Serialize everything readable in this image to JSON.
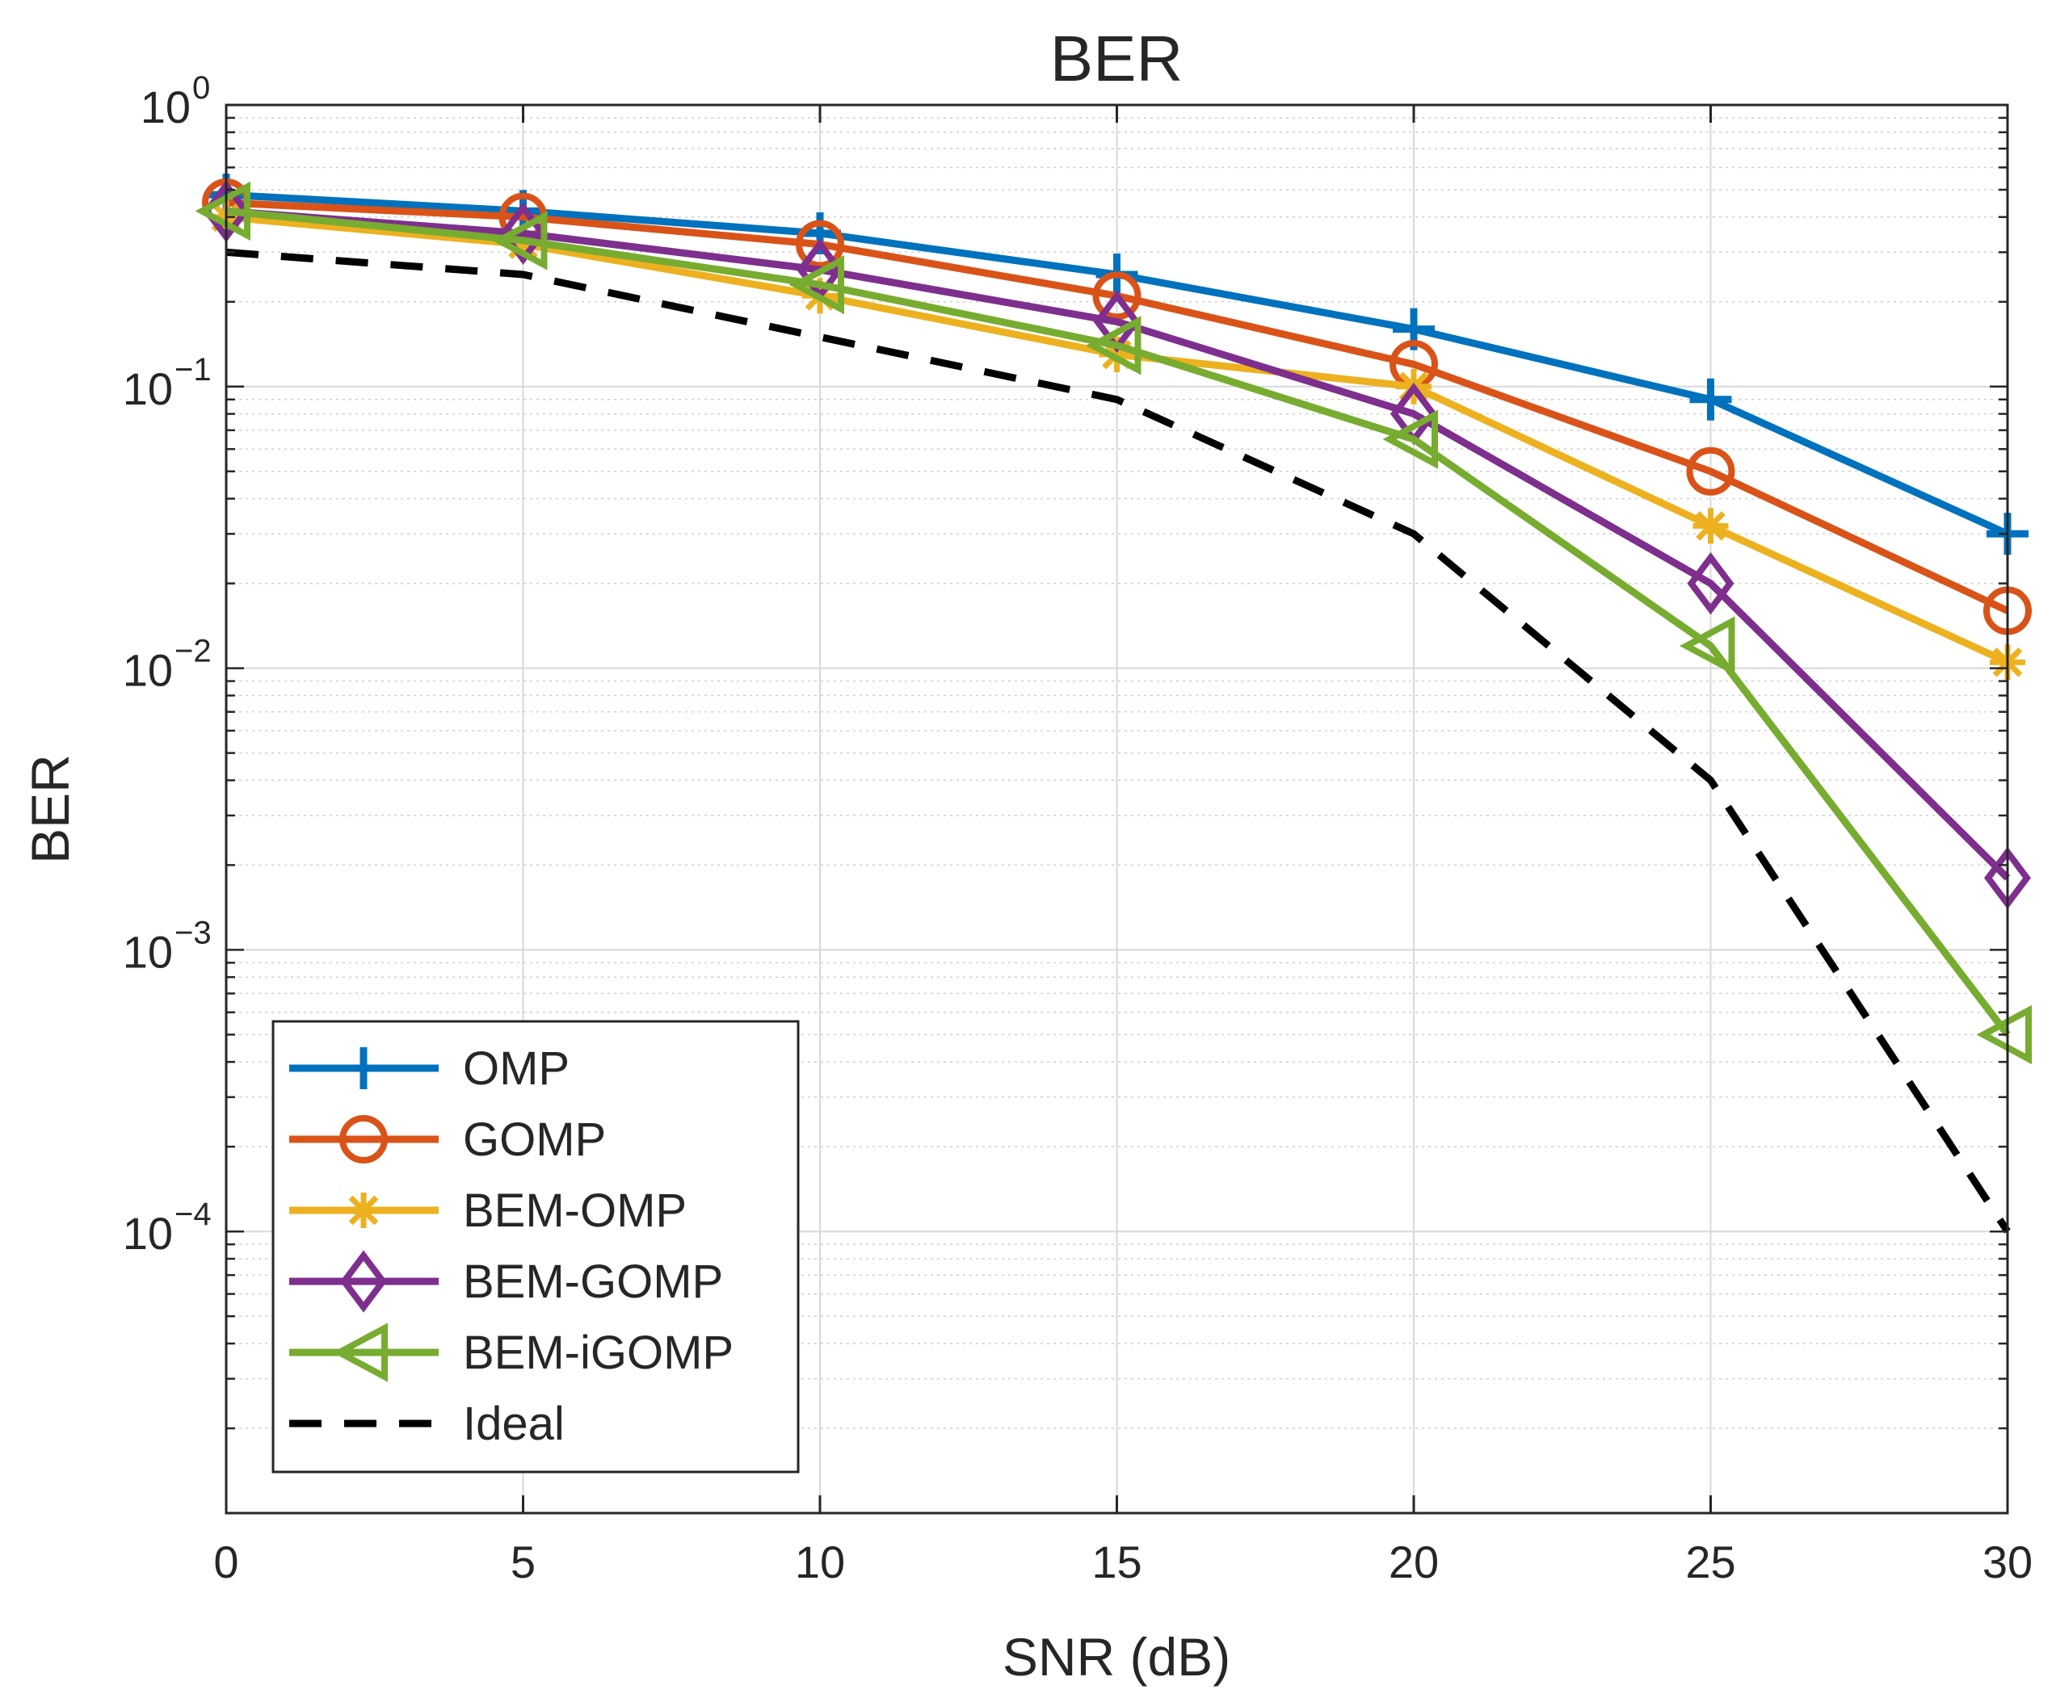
{
  "chart_data": {
    "type": "line",
    "title": "BER",
    "xlabel": "SNR (dB)",
    "ylabel": "BER",
    "xscale": "linear",
    "yscale": "log",
    "xlim": [
      0,
      30
    ],
    "ylim": [
      1e-05,
      1
    ],
    "x": [
      0,
      5,
      10,
      15,
      20,
      25,
      30
    ],
    "xticks": [
      0,
      5,
      10,
      15,
      20,
      25,
      30
    ],
    "xtick_labels": [
      "0",
      "5",
      "10",
      "15",
      "20",
      "25",
      "30"
    ],
    "ytick_decades": [
      {
        "base": "10",
        "exp": "0"
      },
      {
        "base": "10",
        "exp": "−1"
      },
      {
        "base": "10",
        "exp": "−2"
      },
      {
        "base": "10",
        "exp": "−3"
      },
      {
        "base": "10",
        "exp": "−4"
      }
    ],
    "grid": true,
    "legend_position": "bottom-left",
    "series": [
      {
        "name": "OMP",
        "color": "#0072BD",
        "marker": "plus",
        "line": "solid",
        "values": [
          0.48,
          0.42,
          0.35,
          0.25,
          0.16,
          0.09,
          0.03
        ]
      },
      {
        "name": "GOMP",
        "color": "#D95319",
        "marker": "circle",
        "line": "solid",
        "values": [
          0.45,
          0.4,
          0.32,
          0.21,
          0.12,
          0.05,
          0.016
        ]
      },
      {
        "name": "BEM-OMP",
        "color": "#EDB120",
        "marker": "asterisk",
        "line": "solid",
        "values": [
          0.4,
          0.32,
          0.21,
          0.13,
          0.1,
          0.032,
          0.0105
        ]
      },
      {
        "name": "BEM-GOMP",
        "color": "#7E2F8E",
        "marker": "diamond",
        "line": "solid",
        "values": [
          0.42,
          0.35,
          0.26,
          0.17,
          0.08,
          0.02,
          0.0018
        ]
      },
      {
        "name": "BEM-iGOMP",
        "color": "#77AC30",
        "marker": "triangle-left",
        "line": "solid",
        "values": [
          0.42,
          0.33,
          0.23,
          0.14,
          0.065,
          0.012,
          0.0005
        ]
      },
      {
        "name": "Ideal",
        "color": "#000000",
        "marker": "none",
        "line": "dashed",
        "values": [
          0.3,
          0.25,
          0.15,
          0.09,
          0.03,
          0.004,
          0.0001
        ]
      }
    ]
  }
}
